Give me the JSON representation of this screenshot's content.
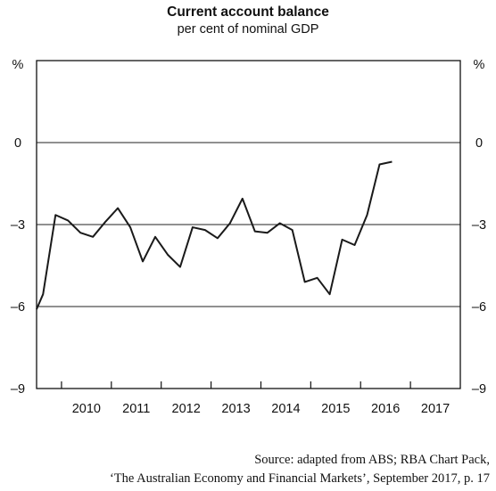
{
  "chart_data": {
    "type": "line",
    "title": "Current account balance",
    "subtitle": "per cent of nominal GDP",
    "y_unit_left": "%",
    "y_unit_right": "%",
    "ylim": [
      -9,
      3
    ],
    "yticks": [
      0,
      -3,
      -6,
      -9
    ],
    "ytick_labels": [
      "0",
      "–3",
      "–6",
      "–9"
    ],
    "xlim": [
      2009.5,
      2018.0
    ],
    "xtick_labels": [
      "2010",
      "2011",
      "2012",
      "2013",
      "2014",
      "2015",
      "2016",
      "2017"
    ],
    "grid": true,
    "series": [
      {
        "x": [
          2009.5,
          2009.63,
          2009.88,
          2010.13,
          2010.38,
          2010.63,
          2010.88,
          2011.13,
          2011.38,
          2011.63,
          2011.88,
          2012.13,
          2012.38,
          2012.63,
          2012.88,
          2013.13,
          2013.38,
          2013.63,
          2013.88,
          2014.13,
          2014.38,
          2014.63,
          2014.88,
          2015.13,
          2015.38,
          2015.63,
          2015.88,
          2016.13,
          2016.38,
          2016.63,
          2016.88,
          2017.13
        ],
        "y": [
          -6.1,
          -5.55,
          -2.65,
          -2.85,
          -3.3,
          -3.45,
          -2.9,
          -2.4,
          -3.1,
          -4.35,
          -3.45,
          -4.1,
          -4.55,
          -3.1,
          -3.2,
          -3.5,
          -2.95,
          -2.05,
          -3.25,
          -3.3,
          -2.95,
          -3.2,
          -5.1,
          -4.95,
          -5.55,
          -3.55,
          -3.75,
          -2.65,
          -0.8,
          -0.7,
          null,
          null
        ]
      }
    ],
    "source_line1": "Source: adapted from ABS; RBA Chart Pack,",
    "source_line2": "‘The Australian Economy and Financial Markets’, September 2017, p. 17"
  }
}
